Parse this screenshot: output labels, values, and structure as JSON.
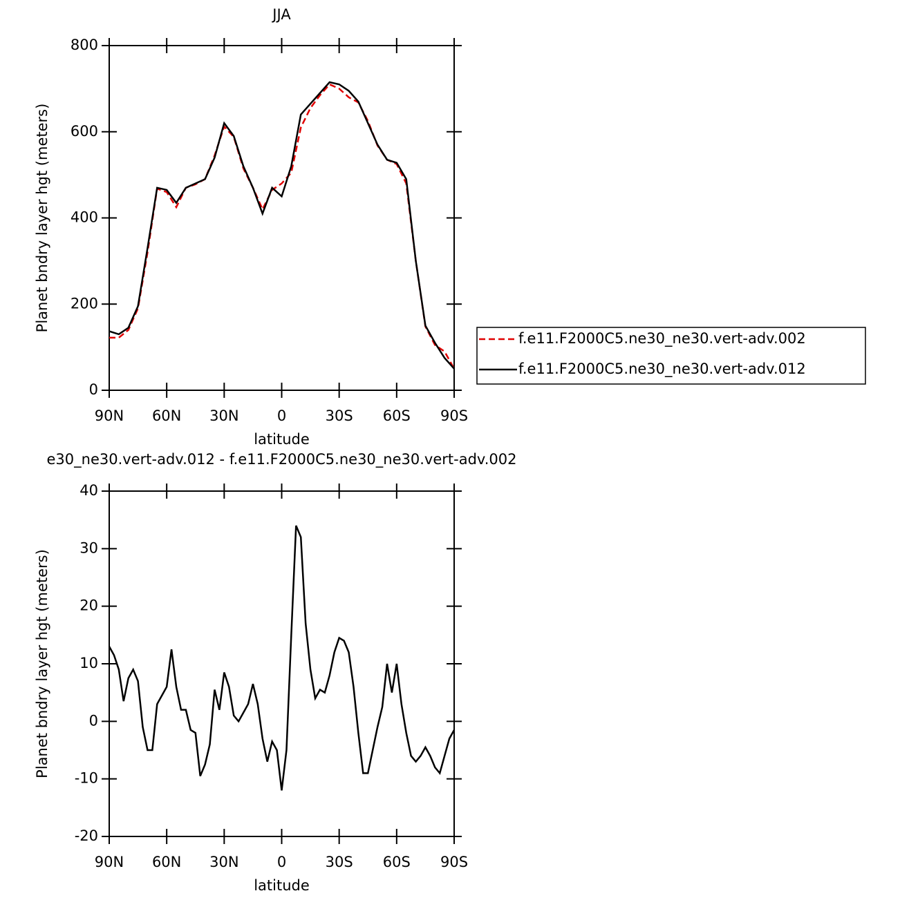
{
  "chart_data": [
    {
      "type": "line",
      "title": "JJA",
      "xlabel": "latitude",
      "ylabel": "Planet bndry layer hgt (meters)",
      "x": [
        90,
        85,
        80,
        75,
        70,
        65,
        60,
        55,
        50,
        45,
        40,
        35,
        30,
        25,
        20,
        15,
        10,
        5,
        0,
        -5,
        -10,
        -15,
        -20,
        -25,
        -30,
        -35,
        -40,
        -45,
        -50,
        -55,
        -60,
        -65,
        -70,
        -75,
        -80,
        -85,
        -90
      ],
      "series": [
        {
          "name": "f.e11.F2000C5.ne30_ne30.vert-adv.002",
          "color": "#e00000",
          "dash": true,
          "values": [
            122,
            122,
            140,
            190,
            320,
            468,
            460,
            425,
            470,
            478,
            490,
            545,
            612,
            588,
            515,
            470,
            420,
            465,
            480,
            505,
            610,
            655,
            685,
            710,
            700,
            680,
            668,
            625,
            568,
            535,
            525,
            480,
            300,
            148,
            105,
            90,
            50
          ]
        },
        {
          "name": "f.e11.F2000C5.ne30_ne30.vert-adv.012",
          "color": "#000000",
          "dash": false,
          "values": [
            137,
            130,
            145,
            195,
            330,
            470,
            465,
            435,
            470,
            480,
            490,
            540,
            620,
            590,
            520,
            470,
            410,
            470,
            450,
            520,
            640,
            665,
            690,
            715,
            710,
            695,
            670,
            620,
            570,
            535,
            528,
            490,
            300,
            150,
            110,
            75,
            50
          ]
        }
      ],
      "xlim": [
        90,
        -90
      ],
      "xticks": [
        {
          "value": 90,
          "label": "90N"
        },
        {
          "value": 60,
          "label": "60N"
        },
        {
          "value": 30,
          "label": "30N"
        },
        0,
        {
          "value": -30,
          "label": "30S"
        },
        {
          "value": -60,
          "label": "60S"
        },
        {
          "value": -90,
          "label": "90S"
        }
      ],
      "ylim": [
        0,
        800
      ],
      "yticks": [
        0,
        200,
        400,
        600,
        800
      ],
      "legend": "right"
    },
    {
      "type": "line",
      "title": "e30_ne30.vert-adv.012 - f.e11.F2000C5.ne30_ne30.vert-adv.002",
      "xlabel": "latitude",
      "ylabel": "Planet bndry layer hgt (meters)",
      "x": [
        90,
        87.5,
        85,
        82.5,
        80,
        77.5,
        75,
        72.5,
        70,
        67.5,
        65,
        62.5,
        60,
        57.5,
        55,
        52.5,
        50,
        47.5,
        45,
        42.5,
        40,
        37.5,
        35,
        32.5,
        30,
        27.5,
        25,
        22.5,
        20,
        17.5,
        15,
        12.5,
        10,
        7.5,
        5,
        2.5,
        0,
        -2.5,
        -5,
        -7.5,
        -10,
        -12.5,
        -15,
        -17.5,
        -20,
        -22.5,
        -25,
        -27.5,
        -30,
        -32.5,
        -35,
        -37.5,
        -40,
        -42.5,
        -45,
        -47.5,
        -50,
        -52.5,
        -55,
        -57.5,
        -60,
        -62.5,
        -65,
        -67.5,
        -70,
        -72.5,
        -75,
        -77.5,
        -80,
        -82.5,
        -85,
        -87.5,
        -90
      ],
      "series": [
        {
          "color": "#000000",
          "dash": false,
          "values": [
            13,
            11.5,
            9,
            3.5,
            7.5,
            9,
            7,
            -1,
            -5,
            -5,
            3,
            4.5,
            6,
            12.5,
            6,
            2,
            2,
            -1.5,
            -2,
            -9.5,
            -7.5,
            -4,
            5.5,
            2,
            8.5,
            6,
            1,
            0,
            1.5,
            3,
            6.5,
            3,
            -3,
            -7,
            -3.5,
            -5,
            -12,
            -5,
            15,
            34,
            32,
            17,
            9,
            4,
            5.5,
            5,
            8,
            12,
            14.5,
            14,
            12,
            6,
            -2,
            -9,
            -9,
            -5,
            -1,
            2.5,
            10,
            5,
            10,
            3,
            -2,
            -6,
            -7,
            -6,
            -4.5,
            -6,
            -8,
            -9,
            -6,
            -3,
            -1.5
          ]
        }
      ],
      "xlim": [
        90,
        -90
      ],
      "xticks": [
        {
          "value": 90,
          "label": "90N"
        },
        {
          "value": 60,
          "label": "60N"
        },
        {
          "value": 30,
          "label": "30N"
        },
        0,
        {
          "value": -30,
          "label": "30S"
        },
        {
          "value": -60,
          "label": "60S"
        },
        {
          "value": -90,
          "label": "90S"
        }
      ],
      "ylim": [
        -20,
        40
      ],
      "yticks": [
        -20,
        -10,
        0,
        10,
        20,
        30,
        40
      ]
    }
  ]
}
